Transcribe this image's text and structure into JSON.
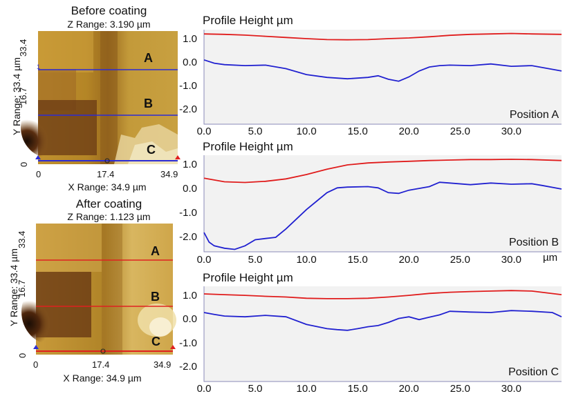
{
  "afm_before": {
    "title": "Before coating",
    "z_range": "Z Range:  3.190 µm",
    "y_label": "Y Range:  33.4 µm",
    "x_label": "X Range:  34.9 µm",
    "y_ticks": [
      "33.4",
      "16.7",
      "0"
    ],
    "x_ticks": [
      "0",
      "17.4",
      "34.9"
    ],
    "line_labels": [
      "A",
      "B",
      "C"
    ],
    "line_color": "#2b2bd6",
    "marker_top": "1"
  },
  "afm_after": {
    "title": "After coating",
    "z_range": "Z Range:  1.123 µm",
    "y_label": "Y Range:  33.4 µm",
    "x_label": "X Range:  34.9 µm",
    "y_ticks": [
      "33.4",
      "16.7",
      "0"
    ],
    "x_ticks": [
      "0",
      "17.4",
      "34.9"
    ],
    "line_labels": [
      "A",
      "B",
      "C"
    ],
    "line_color": "#e02020"
  },
  "colors": {
    "before": "#2020d0",
    "after": "#e01b1b",
    "plot_bg": "#f2f2f2",
    "frame": "#8a8ab8"
  },
  "chart_data": [
    {
      "type": "line",
      "title": "Profile Height µm",
      "annotation": "Position A",
      "xlabel": "",
      "x_ticks": [
        "0.0",
        "5.0",
        "10.0",
        "15.0",
        "20.0",
        "25.0",
        "30.0"
      ],
      "y_ticks": [
        "1.0",
        "0.0",
        "-1.0",
        "-2.0"
      ],
      "xlim": [
        0,
        34.9
      ],
      "ylim": [
        -2.6,
        1.4
      ],
      "series": [
        {
          "color": "#e01b1b",
          "x": [
            0,
            2,
            4,
            6,
            8,
            10,
            12,
            14,
            16,
            18,
            20,
            22,
            24,
            26,
            28,
            30,
            32,
            34.9
          ],
          "y": [
            1.22,
            1.2,
            1.17,
            1.12,
            1.07,
            1.02,
            0.98,
            0.97,
            0.98,
            1.02,
            1.05,
            1.1,
            1.16,
            1.2,
            1.22,
            1.24,
            1.22,
            1.2
          ]
        },
        {
          "color": "#2020d0",
          "x": [
            0,
            1,
            2,
            4,
            6,
            8,
            10,
            12,
            14,
            16,
            17,
            18,
            19,
            20,
            21,
            22,
            23,
            24,
            26,
            28,
            30,
            32,
            34.9
          ],
          "y": [
            0.12,
            -0.02,
            -0.08,
            -0.12,
            -0.1,
            -0.25,
            -0.5,
            -0.62,
            -0.68,
            -0.62,
            -0.55,
            -0.7,
            -0.78,
            -0.6,
            -0.35,
            -0.18,
            -0.12,
            -0.1,
            -0.12,
            -0.05,
            -0.15,
            -0.12,
            -0.35
          ]
        }
      ]
    },
    {
      "type": "line",
      "title": "Profile Height µm",
      "annotation": "Position B",
      "xlabel": "µm",
      "x_ticks": [
        "0.0",
        "5.0",
        "10.0",
        "15.0",
        "20.0",
        "25.0",
        "30.0"
      ],
      "y_ticks": [
        "1.0",
        "0.0",
        "-1.0",
        "-2.0"
      ],
      "xlim": [
        0,
        34.9
      ],
      "ylim": [
        -2.6,
        1.4
      ],
      "series": [
        {
          "color": "#e01b1b",
          "x": [
            0,
            2,
            4,
            6,
            8,
            10,
            12,
            14,
            16,
            18,
            20,
            22,
            24,
            26,
            28,
            30,
            32,
            34.9
          ],
          "y": [
            0.45,
            0.3,
            0.27,
            0.32,
            0.42,
            0.6,
            0.82,
            1.0,
            1.08,
            1.12,
            1.15,
            1.18,
            1.2,
            1.22,
            1.22,
            1.23,
            1.22,
            1.18
          ]
        },
        {
          "color": "#2020d0",
          "x": [
            0,
            0.5,
            1,
            2,
            3,
            4,
            5,
            6,
            7,
            8,
            9,
            10,
            11,
            12,
            13,
            14,
            16,
            17,
            18,
            19,
            20,
            22,
            23,
            24,
            26,
            28,
            30,
            32,
            33,
            34.9
          ],
          "y": [
            -1.8,
            -2.2,
            -2.35,
            -2.45,
            -2.5,
            -2.35,
            -2.1,
            -2.05,
            -2.0,
            -1.65,
            -1.25,
            -0.85,
            -0.5,
            -0.15,
            0.05,
            0.08,
            0.1,
            0.05,
            -0.15,
            -0.18,
            -0.05,
            0.1,
            0.28,
            0.25,
            0.18,
            0.25,
            0.2,
            0.22,
            0.15,
            0.0
          ]
        }
      ]
    },
    {
      "type": "line",
      "title": "Profile Height µm",
      "annotation": "Position C",
      "xlabel": "",
      "x_ticks": [
        "0.0",
        "5.0",
        "10.0",
        "15.0",
        "20.0",
        "25.0",
        "30.0"
      ],
      "y_ticks": [
        "1.0",
        "0.0",
        "-1.0",
        "-2.0"
      ],
      "xlim": [
        0,
        34.9
      ],
      "ylim": [
        -2.6,
        1.4
      ],
      "series": [
        {
          "color": "#e01b1b",
          "x": [
            0,
            2,
            4,
            6,
            8,
            10,
            12,
            14,
            16,
            18,
            20,
            22,
            24,
            26,
            28,
            30,
            32,
            34.9
          ],
          "y": [
            1.08,
            1.05,
            1.02,
            0.98,
            0.95,
            0.9,
            0.88,
            0.88,
            0.9,
            0.95,
            1.02,
            1.1,
            1.15,
            1.18,
            1.2,
            1.22,
            1.2,
            1.05
          ]
        },
        {
          "color": "#2020d0",
          "x": [
            0,
            1,
            2,
            4,
            6,
            8,
            10,
            12,
            13,
            14,
            15,
            16,
            17,
            18,
            19,
            20,
            21,
            22,
            23,
            24,
            26,
            28,
            30,
            32,
            34,
            34.9
          ],
          "y": [
            0.3,
            0.22,
            0.15,
            0.12,
            0.18,
            0.12,
            -0.2,
            -0.38,
            -0.42,
            -0.45,
            -0.38,
            -0.3,
            -0.25,
            -0.12,
            0.05,
            0.12,
            0.0,
            0.1,
            0.2,
            0.35,
            0.32,
            0.3,
            0.38,
            0.35,
            0.3,
            0.12
          ]
        }
      ]
    }
  ]
}
